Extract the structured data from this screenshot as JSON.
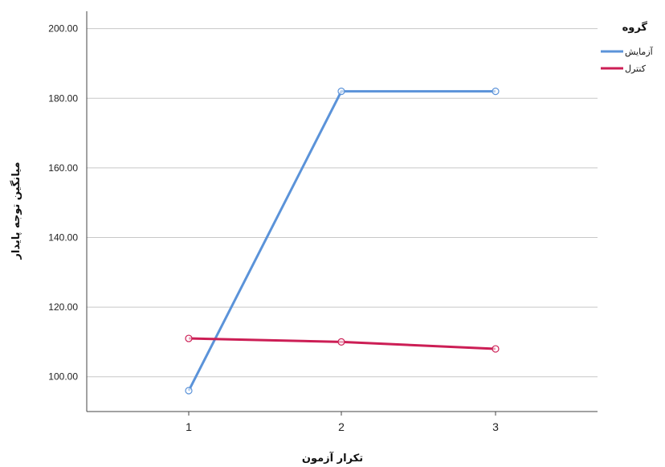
{
  "chart_data": {
    "type": "line",
    "x": [
      "1",
      "2",
      "3"
    ],
    "xlabel": "تکرار آزمون",
    "ylabel": "میانگین توجه پایدار",
    "ylim": [
      90,
      205
    ],
    "yticks": [
      "100.00",
      "120.00",
      "140.00",
      "160.00",
      "180.00",
      "200.00"
    ],
    "grid": true,
    "legend": {
      "title": "گروه",
      "placement": "top-right"
    },
    "series": [
      {
        "name": "آزمایش",
        "color": "#5b93d9",
        "values": [
          96,
          182,
          182
        ]
      },
      {
        "name": "کنترل",
        "color": "#cc1e55",
        "values": [
          111,
          110,
          108
        ]
      }
    ]
  }
}
